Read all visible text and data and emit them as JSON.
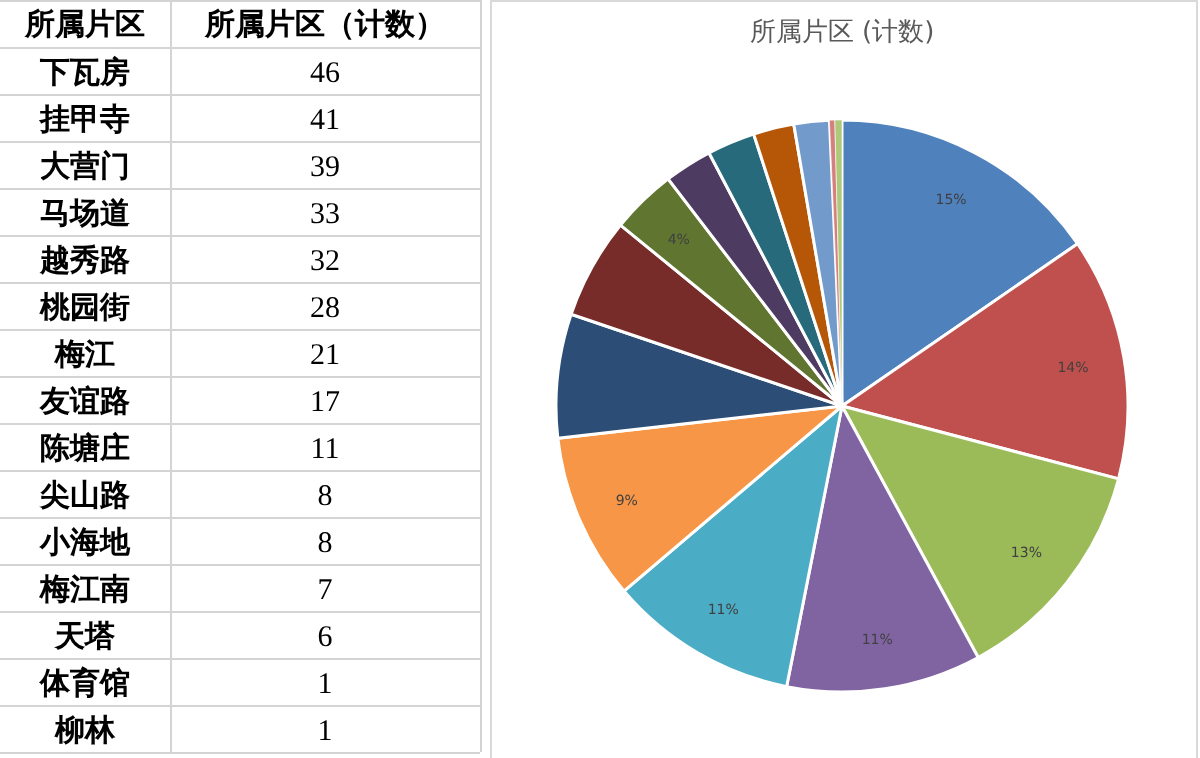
{
  "chart_data": [
    {
      "type": "other",
      "annotations": [
        "所属片区",
        "所属片区（计数）"
      ],
      "categories": [
        "下瓦房",
        "挂甲寺",
        "大营门",
        "马场道",
        "越秀路",
        "桃园街",
        "梅江",
        "友谊路",
        "陈塘庄",
        "尖山路",
        "小海地",
        "梅江南",
        "天塔",
        "体育馆",
        "柳林"
      ],
      "values": [
        46,
        41,
        39,
        33,
        32,
        28,
        21,
        17,
        11,
        8,
        8,
        7,
        6,
        1,
        1
      ],
      "data_labels": true
    },
    {
      "type": "pie",
      "title": "所属片区 (计数)",
      "categories": [
        null,
        null,
        null,
        null,
        null,
        null,
        null,
        null,
        null,
        null,
        null,
        null,
        null,
        null,
        null
      ],
      "values": [
        15.4,
        13.7,
        13.0,
        11.0,
        10.7,
        9.4,
        7.0,
        5.7,
        3.7,
        2.7,
        2.7,
        2.3,
        2.0,
        0.3,
        0.4
      ],
      "value_labels": [
        "15%",
        "14%",
        "13%",
        "11%",
        "11%",
        "9%",
        null,
        null,
        "4%",
        null,
        null,
        null,
        null,
        null,
        null
      ],
      "colors": [
        "#4f81bd",
        "#c0504d",
        "#9bbb59",
        "#8064a2",
        "#4bacc6",
        "#f79646",
        "#2c4d75",
        "#772c2a",
        "#5f7530",
        "#4d3b62",
        "#276a7c",
        "#b65708",
        "#729aca",
        "#d4807e",
        "#afc97a"
      ]
    }
  ]
}
